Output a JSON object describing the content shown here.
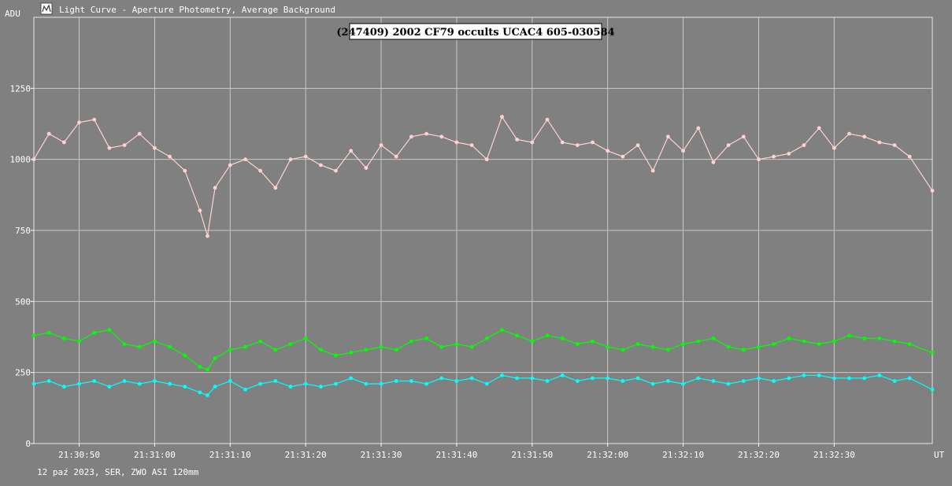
{
  "window": {
    "title": "Light Curve - Aperture Photometry, Average Background",
    "icon": "light-curve-app-icon"
  },
  "footer": "12 paź 2023, SER, ZWO ASI 120mm",
  "chart_data": {
    "type": "line",
    "title": "(247409) 2002 CF79 occults UCAC4 605-030584",
    "ylabel": "ADU",
    "xunit": "UT",
    "ylim": [
      0,
      1500
    ],
    "yticks": [
      0,
      250,
      500,
      750,
      1000,
      1250
    ],
    "xlim": [
      "21:30:44",
      "21:32:43"
    ],
    "xticks": [
      "21:30:50",
      "21:31:00",
      "21:31:10",
      "21:31:20",
      "21:31:30",
      "21:31:40",
      "21:31:50",
      "21:32:00",
      "21:32:10",
      "21:32:20",
      "21:32:30"
    ],
    "grid": true,
    "series": [
      {
        "color": "#ffd2d2",
        "points": [
          [
            "21:30:44",
            1000
          ],
          [
            "21:30:46",
            1090
          ],
          [
            "21:30:48",
            1060
          ],
          [
            "21:30:50",
            1130
          ],
          [
            "21:30:52",
            1140
          ],
          [
            "21:30:54",
            1040
          ],
          [
            "21:30:56",
            1050
          ],
          [
            "21:30:58",
            1090
          ],
          [
            "21:31:00",
            1040
          ],
          [
            "21:31:02",
            1010
          ],
          [
            "21:31:04",
            960
          ],
          [
            "21:31:06",
            820
          ],
          [
            "21:31:07",
            730
          ],
          [
            "21:31:08",
            900
          ],
          [
            "21:31:10",
            980
          ],
          [
            "21:31:12",
            1000
          ],
          [
            "21:31:14",
            960
          ],
          [
            "21:31:16",
            900
          ],
          [
            "21:31:18",
            1000
          ],
          [
            "21:31:20",
            1010
          ],
          [
            "21:31:22",
            980
          ],
          [
            "21:31:24",
            960
          ],
          [
            "21:31:26",
            1030
          ],
          [
            "21:31:28",
            970
          ],
          [
            "21:31:30",
            1050
          ],
          [
            "21:31:32",
            1010
          ],
          [
            "21:31:34",
            1080
          ],
          [
            "21:31:36",
            1090
          ],
          [
            "21:31:38",
            1080
          ],
          [
            "21:31:40",
            1060
          ],
          [
            "21:31:42",
            1050
          ],
          [
            "21:31:44",
            1000
          ],
          [
            "21:31:46",
            1150
          ],
          [
            "21:31:48",
            1070
          ],
          [
            "21:31:50",
            1060
          ],
          [
            "21:31:52",
            1140
          ],
          [
            "21:31:54",
            1060
          ],
          [
            "21:31:56",
            1050
          ],
          [
            "21:31:58",
            1060
          ],
          [
            "21:32:00",
            1030
          ],
          [
            "21:32:02",
            1010
          ],
          [
            "21:32:04",
            1050
          ],
          [
            "21:32:06",
            960
          ],
          [
            "21:32:08",
            1080
          ],
          [
            "21:32:10",
            1030
          ],
          [
            "21:32:12",
            1110
          ],
          [
            "21:32:14",
            990
          ],
          [
            "21:32:16",
            1050
          ],
          [
            "21:32:18",
            1080
          ],
          [
            "21:32:20",
            1000
          ],
          [
            "21:32:22",
            1010
          ],
          [
            "21:32:24",
            1020
          ],
          [
            "21:32:26",
            1050
          ],
          [
            "21:32:28",
            1110
          ],
          [
            "21:32:30",
            1040
          ],
          [
            "21:32:32",
            1090
          ],
          [
            "21:32:34",
            1080
          ],
          [
            "21:32:36",
            1060
          ],
          [
            "21:32:38",
            1050
          ],
          [
            "21:32:40",
            1010
          ],
          [
            "21:32:43",
            890
          ]
        ]
      },
      {
        "color": "#00ff00",
        "points": [
          [
            "21:30:44",
            380
          ],
          [
            "21:30:46",
            390
          ],
          [
            "21:30:48",
            370
          ],
          [
            "21:30:50",
            360
          ],
          [
            "21:30:52",
            390
          ],
          [
            "21:30:54",
            400
          ],
          [
            "21:30:56",
            350
          ],
          [
            "21:30:58",
            340
          ],
          [
            "21:31:00",
            360
          ],
          [
            "21:31:02",
            340
          ],
          [
            "21:31:04",
            310
          ],
          [
            "21:31:06",
            270
          ],
          [
            "21:31:07",
            260
          ],
          [
            "21:31:08",
            300
          ],
          [
            "21:31:10",
            330
          ],
          [
            "21:31:12",
            340
          ],
          [
            "21:31:14",
            360
          ],
          [
            "21:31:16",
            330
          ],
          [
            "21:31:18",
            350
          ],
          [
            "21:31:20",
            370
          ],
          [
            "21:31:22",
            330
          ],
          [
            "21:31:24",
            310
          ],
          [
            "21:31:26",
            320
          ],
          [
            "21:31:28",
            330
          ],
          [
            "21:31:30",
            340
          ],
          [
            "21:31:32",
            330
          ],
          [
            "21:31:34",
            360
          ],
          [
            "21:31:36",
            370
          ],
          [
            "21:31:38",
            340
          ],
          [
            "21:31:40",
            350
          ],
          [
            "21:31:42",
            340
          ],
          [
            "21:31:44",
            370
          ],
          [
            "21:31:46",
            400
          ],
          [
            "21:31:48",
            380
          ],
          [
            "21:31:50",
            360
          ],
          [
            "21:31:52",
            380
          ],
          [
            "21:31:54",
            370
          ],
          [
            "21:31:56",
            350
          ],
          [
            "21:31:58",
            360
          ],
          [
            "21:32:00",
            340
          ],
          [
            "21:32:02",
            330
          ],
          [
            "21:32:04",
            350
          ],
          [
            "21:32:06",
            340
          ],
          [
            "21:32:08",
            330
          ],
          [
            "21:32:10",
            350
          ],
          [
            "21:32:12",
            360
          ],
          [
            "21:32:14",
            370
          ],
          [
            "21:32:16",
            340
          ],
          [
            "21:32:18",
            330
          ],
          [
            "21:32:20",
            340
          ],
          [
            "21:32:22",
            350
          ],
          [
            "21:32:24",
            370
          ],
          [
            "21:32:26",
            360
          ],
          [
            "21:32:28",
            350
          ],
          [
            "21:32:30",
            360
          ],
          [
            "21:32:32",
            380
          ],
          [
            "21:32:34",
            370
          ],
          [
            "21:32:36",
            370
          ],
          [
            "21:32:38",
            360
          ],
          [
            "21:32:40",
            350
          ],
          [
            "21:32:43",
            320
          ]
        ]
      },
      {
        "color": "#00ffff",
        "points": [
          [
            "21:30:44",
            210
          ],
          [
            "21:30:46",
            220
          ],
          [
            "21:30:48",
            200
          ],
          [
            "21:30:50",
            210
          ],
          [
            "21:30:52",
            220
          ],
          [
            "21:30:54",
            200
          ],
          [
            "21:30:56",
            220
          ],
          [
            "21:30:58",
            210
          ],
          [
            "21:31:00",
            220
          ],
          [
            "21:31:02",
            210
          ],
          [
            "21:31:04",
            200
          ],
          [
            "21:31:06",
            180
          ],
          [
            "21:31:07",
            170
          ],
          [
            "21:31:08",
            200
          ],
          [
            "21:31:10",
            220
          ],
          [
            "21:31:12",
            190
          ],
          [
            "21:31:14",
            210
          ],
          [
            "21:31:16",
            220
          ],
          [
            "21:31:18",
            200
          ],
          [
            "21:31:20",
            210
          ],
          [
            "21:31:22",
            200
          ],
          [
            "21:31:24",
            210
          ],
          [
            "21:31:26",
            230
          ],
          [
            "21:31:28",
            210
          ],
          [
            "21:31:30",
            210
          ],
          [
            "21:31:32",
            220
          ],
          [
            "21:31:34",
            220
          ],
          [
            "21:31:36",
            210
          ],
          [
            "21:31:38",
            230
          ],
          [
            "21:31:40",
            220
          ],
          [
            "21:31:42",
            230
          ],
          [
            "21:31:44",
            210
          ],
          [
            "21:31:46",
            240
          ],
          [
            "21:31:48",
            230
          ],
          [
            "21:31:50",
            230
          ],
          [
            "21:31:52",
            220
          ],
          [
            "21:31:54",
            240
          ],
          [
            "21:31:56",
            220
          ],
          [
            "21:31:58",
            230
          ],
          [
            "21:32:00",
            230
          ],
          [
            "21:32:02",
            220
          ],
          [
            "21:32:04",
            230
          ],
          [
            "21:32:06",
            210
          ],
          [
            "21:32:08",
            220
          ],
          [
            "21:32:10",
            210
          ],
          [
            "21:32:12",
            230
          ],
          [
            "21:32:14",
            220
          ],
          [
            "21:32:16",
            210
          ],
          [
            "21:32:18",
            220
          ],
          [
            "21:32:20",
            230
          ],
          [
            "21:32:22",
            220
          ],
          [
            "21:32:24",
            230
          ],
          [
            "21:32:26",
            240
          ],
          [
            "21:32:28",
            240
          ],
          [
            "21:32:30",
            230
          ],
          [
            "21:32:32",
            230
          ],
          [
            "21:32:34",
            230
          ],
          [
            "21:32:36",
            240
          ],
          [
            "21:32:38",
            220
          ],
          [
            "21:32:40",
            230
          ],
          [
            "21:32:43",
            190
          ]
        ]
      }
    ]
  }
}
